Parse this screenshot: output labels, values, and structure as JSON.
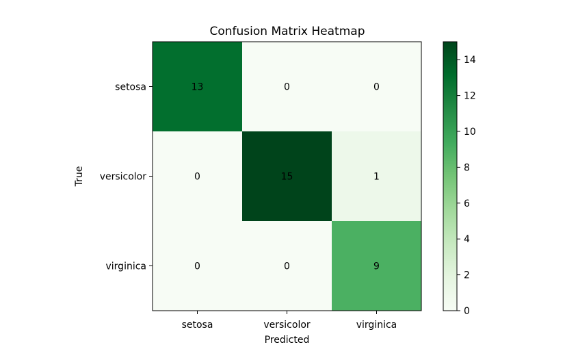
{
  "chart_data": {
    "type": "heatmap",
    "title": "Confusion Matrix Heatmap",
    "xlabel": "Predicted",
    "ylabel": "True",
    "x_categories": [
      "setosa",
      "versicolor",
      "virginica"
    ],
    "y_categories": [
      "setosa",
      "versicolor",
      "virginica"
    ],
    "values": [
      [
        13,
        0,
        0
      ],
      [
        0,
        15,
        1
      ],
      [
        0,
        0,
        9
      ]
    ],
    "colormap": "Greens",
    "colorbar": {
      "range": [
        0,
        15
      ],
      "ticks": [
        0,
        2,
        4,
        6,
        8,
        10,
        12,
        14
      ]
    },
    "grid": false
  }
}
